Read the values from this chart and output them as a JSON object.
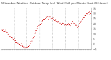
{
  "title": "Milwaukee Weather  Outdoor Temp (vs)  Wind Chill per Minute (Last 24 Hours)",
  "bg_color": "#ffffff",
  "line_color": "#cc0000",
  "grid_color": "#888888",
  "tick_color": "#555555",
  "y_min": -5,
  "y_max": 35,
  "y_ticks": [
    -5,
    0,
    5,
    10,
    15,
    20,
    25,
    30,
    35
  ],
  "num_points": 144,
  "seed": 42,
  "vline_positions": [
    0.14,
    0.28,
    0.43,
    0.57,
    0.71,
    0.86
  ],
  "control_x": [
    0,
    0.04,
    0.08,
    0.14,
    0.2,
    0.25,
    0.28,
    0.3,
    0.33,
    0.37,
    0.41,
    0.46,
    0.5,
    0.54,
    0.58,
    0.62,
    0.66,
    0.7,
    0.75,
    0.8,
    0.85,
    0.9,
    0.95,
    1.0
  ],
  "control_y": [
    14,
    13,
    10,
    5,
    0,
    -2,
    -3,
    -2,
    2,
    10,
    18,
    23,
    26,
    27,
    25,
    22,
    21,
    20,
    19,
    21,
    17,
    25,
    30,
    32
  ]
}
